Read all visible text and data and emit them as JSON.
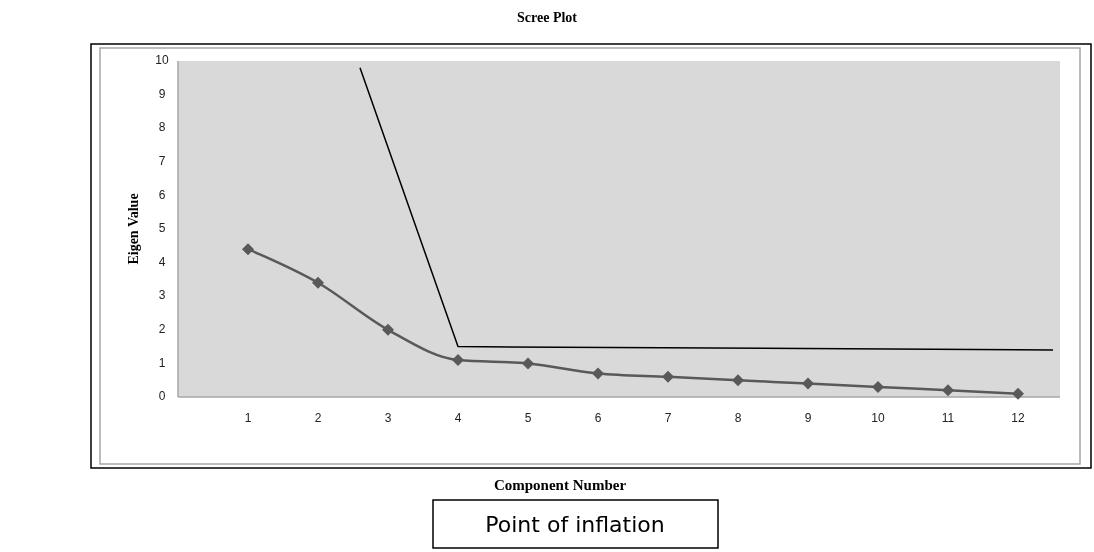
{
  "chart_data": {
    "type": "line",
    "title": "Scree Plot",
    "xlabel": "Component Number",
    "ylabel": "Eigen Value",
    "annotations": [
      "Point of inflation"
    ],
    "x": [
      1,
      2,
      3,
      4,
      5,
      6,
      7,
      8,
      9,
      10,
      11,
      12
    ],
    "series": [
      {
        "color": "#595959",
        "marker": "diamond",
        "values": [
          4.4,
          3.4,
          2.0,
          1.1,
          1.0,
          0.7,
          0.6,
          0.5,
          0.4,
          0.3,
          0.2,
          0.1
        ]
      },
      {
        "color": "#000000",
        "marker": "none",
        "x": [
          2.6,
          4,
          12.5
        ],
        "values": [
          9.8,
          1.5,
          1.4
        ]
      }
    ],
    "xlim": [
      0,
      12.6
    ],
    "xticks": [
      1,
      2,
      3,
      4,
      5,
      6,
      7,
      8,
      9,
      10,
      11,
      12
    ],
    "ylim": [
      0,
      10
    ],
    "yticks": [
      0,
      1,
      2,
      3,
      4,
      5,
      6,
      7,
      8,
      9,
      10
    ],
    "grid": false,
    "line_style": "solid"
  }
}
